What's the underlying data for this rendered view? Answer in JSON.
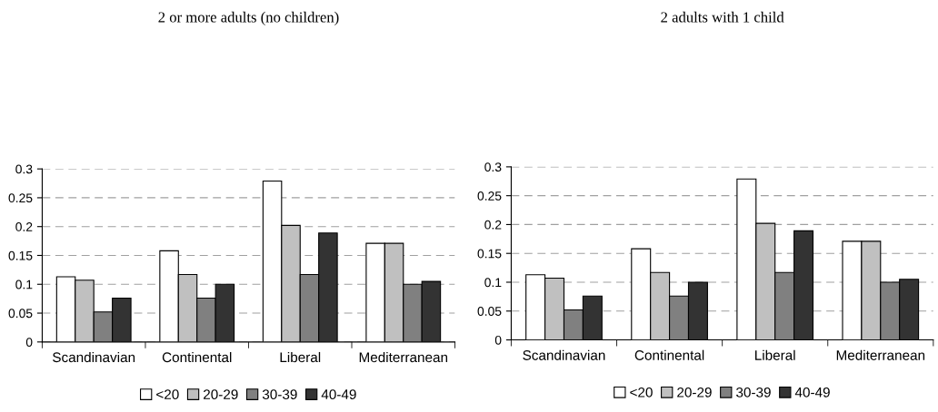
{
  "chart_data": [
    {
      "type": "bar",
      "title": "2 or more adults (no children)",
      "categories": [
        "Scandinavian",
        "Continental",
        "Liberal",
        "Mediterranean"
      ],
      "series": [
        {
          "name": "<20",
          "color": "#ffffff",
          "values": [
            0.113,
            0.158,
            0.279,
            0.171
          ]
        },
        {
          "name": "20-29",
          "color": "#c0c0c0",
          "values": [
            0.107,
            0.117,
            0.202,
            0.171
          ]
        },
        {
          "name": "30-39",
          "color": "#808080",
          "values": [
            0.052,
            0.076,
            0.117,
            0.1
          ]
        },
        {
          "name": "40-49",
          "color": "#333333",
          "values": [
            0.076,
            0.1,
            0.189,
            0.105
          ]
        }
      ],
      "ylim": [
        0,
        0.3
      ],
      "yticks": [
        0,
        0.05,
        0.1,
        0.15,
        0.2,
        0.25,
        0.3
      ],
      "grid": "y",
      "legend": "bottom"
    },
    {
      "type": "bar",
      "title": "2 adults with 1 child",
      "categories": [
        "Scandinavian",
        "Continental",
        "Liberal",
        "Mediterranean"
      ],
      "series": [
        {
          "name": "<20",
          "color": "#ffffff",
          "values": [
            0.113,
            0.158,
            0.279,
            0.171
          ]
        },
        {
          "name": "20-29",
          "color": "#c0c0c0",
          "values": [
            0.107,
            0.117,
            0.202,
            0.171
          ]
        },
        {
          "name": "30-39",
          "color": "#808080",
          "values": [
            0.052,
            0.076,
            0.117,
            0.1
          ]
        },
        {
          "name": "40-49",
          "color": "#333333",
          "values": [
            0.076,
            0.1,
            0.189,
            0.105
          ]
        }
      ],
      "ylim": [
        0,
        0.3
      ],
      "yticks": [
        0,
        0.05,
        0.1,
        0.15,
        0.2,
        0.25,
        0.3
      ],
      "grid": "y",
      "legend": "bottom"
    }
  ]
}
